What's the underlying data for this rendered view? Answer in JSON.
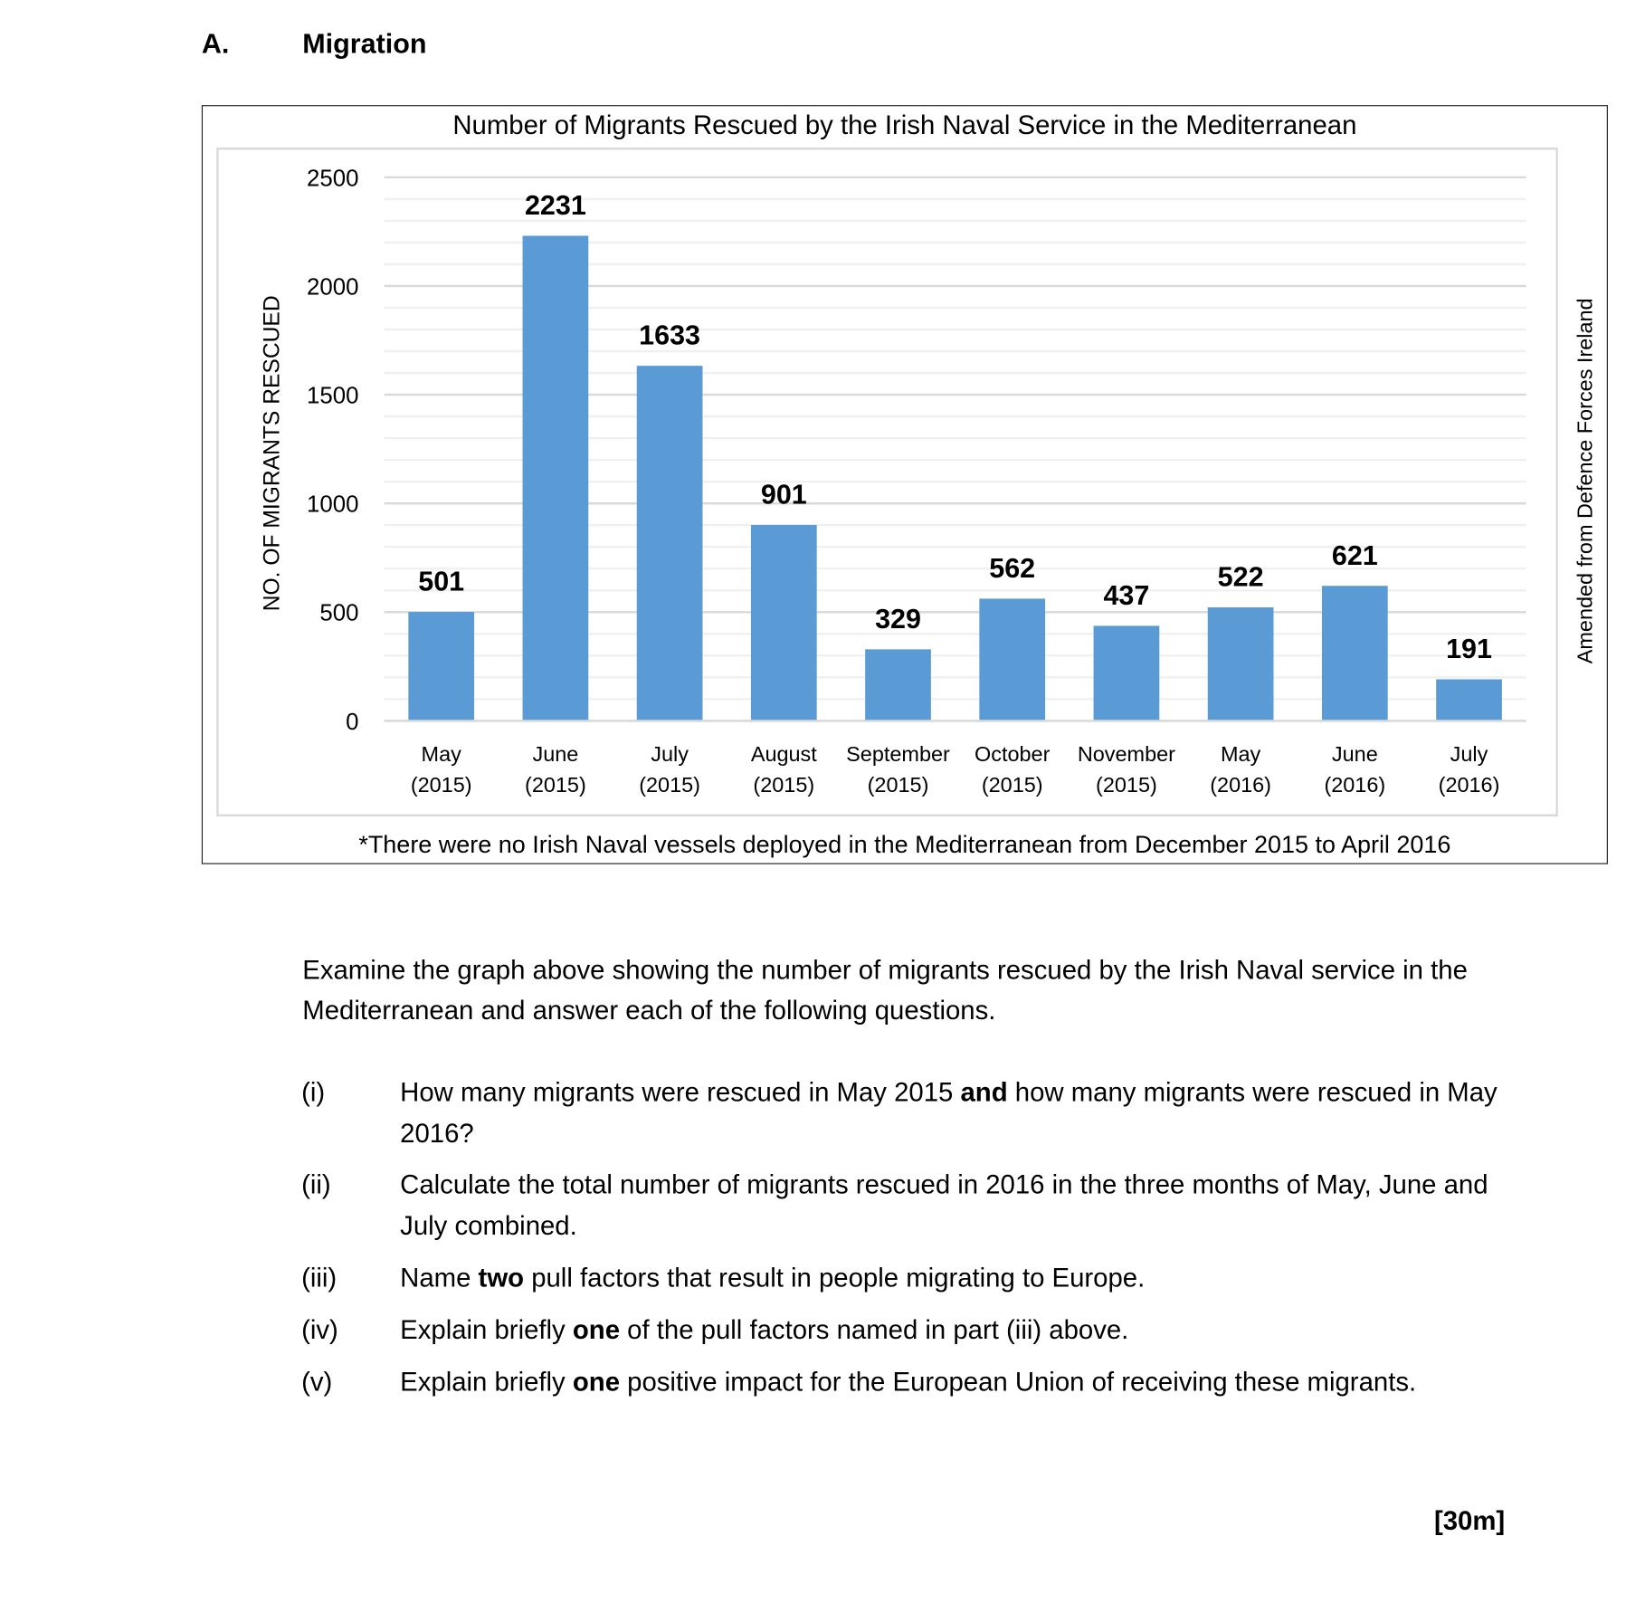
{
  "section": {
    "letter": "A.",
    "title": "Migration"
  },
  "chart_data": {
    "type": "bar",
    "title": "Number of Migrants Rescued by the Irish Naval Service in the Mediterranean",
    "ylabel": "No. of Migrants Rescued",
    "xlabel": "",
    "categories": [
      [
        "May",
        "(2015)"
      ],
      [
        "June",
        "(2015)"
      ],
      [
        "July",
        "(2015)"
      ],
      [
        "August",
        "(2015)"
      ],
      [
        "September",
        "(2015)"
      ],
      [
        "October",
        "(2015)"
      ],
      [
        "November",
        "(2015)"
      ],
      [
        "May",
        "(2016)"
      ],
      [
        "June",
        "(2016)"
      ],
      [
        "July",
        "(2016)"
      ]
    ],
    "values": [
      501,
      2231,
      1633,
      901,
      329,
      562,
      437,
      522,
      621,
      191
    ],
    "ylim": [
      0,
      2500
    ],
    "yticks": [
      0,
      500,
      1000,
      1500,
      2000,
      2500
    ],
    "grid": true,
    "bar_color": "#5b9bd5",
    "source": "Amended from Defence Forces Ireland",
    "footnote": "*There were no Irish Naval vessels deployed in the Mediterranean from December 2015 to April 2016"
  },
  "intro": "Examine the graph above showing the number of migrants rescued by the Irish Naval service in the Mediterranean and answer each of the following questions.",
  "questions": [
    {
      "num": "(i)",
      "html": "How many migrants were rescued in May 2015 <b>and</b> how many migrants were rescued in May 2016?"
    },
    {
      "num": "(ii)",
      "html": "Calculate the total number of migrants rescued in 2016 in the three months of May, June and July combined."
    },
    {
      "num": "(iii)",
      "html": "Name <b>two</b> pull factors that result in people migrating to Europe."
    },
    {
      "num": "(iv)",
      "html": "Explain briefly <b>one</b> of the pull factors named in part (iii) above."
    },
    {
      "num": "(v)",
      "html": "Explain briefly <b>one</b> positive impact for the European Union of receiving these migrants."
    }
  ],
  "marks": "[30m]"
}
